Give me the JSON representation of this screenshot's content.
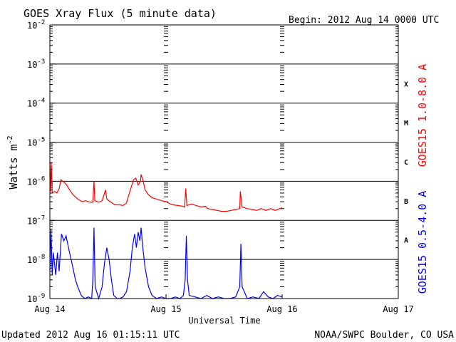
{
  "chart_data": {
    "type": "line",
    "title": "GOES Xray Flux (5 minute data)",
    "begin_label": "Begin:  2012 Aug 14 0000 UTC",
    "ylabel": "Watts m",
    "ylabel_sup": "-2",
    "xlabel": "Universal Time",
    "y_scale": "log",
    "ylim": [
      1e-09,
      0.01
    ],
    "y_ticks": [
      {
        "base": "10",
        "exp": "-2"
      },
      {
        "base": "10",
        "exp": "-3"
      },
      {
        "base": "10",
        "exp": "-4"
      },
      {
        "base": "10",
        "exp": "-5"
      },
      {
        "base": "10",
        "exp": "-6"
      },
      {
        "base": "10",
        "exp": "-7"
      },
      {
        "base": "10",
        "exp": "-8"
      },
      {
        "base": "10",
        "exp": "-9"
      }
    ],
    "x_ticks": [
      "Aug 14",
      "Aug 15",
      "Aug 16",
      "Aug 17"
    ],
    "xlim_days": [
      0,
      3
    ],
    "flare_classes": [
      {
        "label": "X",
        "value": 0.0001
      },
      {
        "label": "M",
        "value": 1e-05
      },
      {
        "label": "C",
        "value": 1e-06
      },
      {
        "label": "B",
        "value": 1e-07
      },
      {
        "label": "A",
        "value": 1e-08
      }
    ],
    "grid": true,
    "series": [
      {
        "name": "GOES15 1.0-8.0 A",
        "color": "#ff0000",
        "points": [
          [
            0.0,
            3.2e-06
          ],
          [
            0.005,
            5.5e-07
          ],
          [
            0.012,
            3e-06
          ],
          [
            0.02,
            5e-07
          ],
          [
            0.04,
            5.5e-07
          ],
          [
            0.06,
            5e-07
          ],
          [
            0.08,
            6.5e-07
          ],
          [
            0.095,
            1.1e-06
          ],
          [
            0.11,
            1e-06
          ],
          [
            0.14,
            8.5e-07
          ],
          [
            0.17,
            6e-07
          ],
          [
            0.2,
            4.5e-07
          ],
          [
            0.24,
            3.5e-07
          ],
          [
            0.28,
            3e-07
          ],
          [
            0.31,
            3.2e-07
          ],
          [
            0.33,
            3e-07
          ],
          [
            0.35,
            2.9e-07
          ],
          [
            0.37,
            2.9e-07
          ],
          [
            0.38,
            1e-06
          ],
          [
            0.388,
            3.2e-07
          ],
          [
            0.42,
            2.9e-07
          ],
          [
            0.45,
            3.2e-07
          ],
          [
            0.48,
            6e-07
          ],
          [
            0.49,
            3.5e-07
          ],
          [
            0.52,
            3e-07
          ],
          [
            0.56,
            2.5e-07
          ],
          [
            0.6,
            2.5e-07
          ],
          [
            0.63,
            2.4e-07
          ],
          [
            0.66,
            2.8e-07
          ],
          [
            0.68,
            4.5e-07
          ],
          [
            0.7,
            7e-07
          ],
          [
            0.72,
            1.1e-06
          ],
          [
            0.74,
            1.2e-06
          ],
          [
            0.76,
            8e-07
          ],
          [
            0.78,
            1e-06
          ],
          [
            0.785,
            1.5e-06
          ],
          [
            0.8,
            1.1e-06
          ],
          [
            0.82,
            6e-07
          ],
          [
            0.85,
            4.5e-07
          ],
          [
            0.88,
            3.8e-07
          ],
          [
            0.92,
            3.5e-07
          ],
          [
            0.96,
            3.2e-07
          ],
          [
            1.0,
            3e-07
          ],
          [
            1.04,
            2.6e-07
          ],
          [
            1.06,
            2.5e-07
          ],
          [
            1.1,
            2.4e-07
          ],
          [
            1.14,
            2.3e-07
          ],
          [
            1.16,
            2.2e-07
          ],
          [
            1.17,
            6.5e-07
          ],
          [
            1.18,
            2.4e-07
          ],
          [
            1.22,
            2.6e-07
          ],
          [
            1.26,
            2.4e-07
          ],
          [
            1.3,
            2.2e-07
          ],
          [
            1.34,
            2.3e-07
          ],
          [
            1.36,
            2e-07
          ],
          [
            1.4,
            1.9e-07
          ],
          [
            1.44,
            1.8e-07
          ],
          [
            1.48,
            1.7e-07
          ],
          [
            1.52,
            1.7e-07
          ],
          [
            1.56,
            1.8e-07
          ],
          [
            1.6,
            1.9e-07
          ],
          [
            1.635,
            2e-07
          ],
          [
            1.64,
            5.5e-07
          ],
          [
            1.655,
            2.2e-07
          ],
          [
            1.7,
            2e-07
          ],
          [
            1.74,
            1.9e-07
          ],
          [
            1.78,
            1.8e-07
          ],
          [
            1.82,
            2e-07
          ],
          [
            1.86,
            1.8e-07
          ],
          [
            1.9,
            2e-07
          ],
          [
            1.94,
            1.8e-07
          ],
          [
            1.98,
            2e-07
          ],
          [
            2.0,
            2.1e-07
          ]
        ]
      },
      {
        "name": "GOES15 0.5-4.0 A",
        "color": "#0000ff",
        "points": [
          [
            0.0,
            5e-09
          ],
          [
            0.01,
            6e-08
          ],
          [
            0.02,
            4e-09
          ],
          [
            0.03,
            1.5e-08
          ],
          [
            0.05,
            4e-09
          ],
          [
            0.065,
            1.5e-08
          ],
          [
            0.08,
            5e-09
          ],
          [
            0.1,
            4.5e-08
          ],
          [
            0.12,
            3e-08
          ],
          [
            0.14,
            4e-08
          ],
          [
            0.16,
            2e-08
          ],
          [
            0.19,
            8e-09
          ],
          [
            0.22,
            3e-09
          ],
          [
            0.24,
            2e-09
          ],
          [
            0.27,
            1.2e-09
          ],
          [
            0.3,
            1e-09
          ],
          [
            0.33,
            1.1e-09
          ],
          [
            0.36,
            1e-09
          ],
          [
            0.37,
            3e-09
          ],
          [
            0.38,
            6.5e-08
          ],
          [
            0.39,
            2e-09
          ],
          [
            0.42,
            1e-09
          ],
          [
            0.45,
            2e-09
          ],
          [
            0.47,
            8e-09
          ],
          [
            0.49,
            2e-08
          ],
          [
            0.51,
            1e-08
          ],
          [
            0.53,
            3e-09
          ],
          [
            0.55,
            1.2e-09
          ],
          [
            0.58,
            1e-09
          ],
          [
            0.6,
            1e-09
          ],
          [
            0.63,
            1.1e-09
          ],
          [
            0.66,
            1.5e-09
          ],
          [
            0.69,
            5e-09
          ],
          [
            0.71,
            2e-08
          ],
          [
            0.73,
            4.5e-08
          ],
          [
            0.745,
            2e-08
          ],
          [
            0.76,
            5e-08
          ],
          [
            0.775,
            3e-08
          ],
          [
            0.785,
            6.5e-08
          ],
          [
            0.8,
            2e-08
          ],
          [
            0.82,
            6e-09
          ],
          [
            0.85,
            2e-09
          ],
          [
            0.88,
            1.2e-09
          ],
          [
            0.92,
            1e-09
          ],
          [
            0.96,
            1.1e-09
          ],
          [
            1.0,
            1e-09
          ],
          [
            1.04,
            1e-09
          ],
          [
            1.08,
            1.1e-09
          ],
          [
            1.12,
            1e-09
          ],
          [
            1.15,
            1.2e-09
          ],
          [
            1.165,
            3e-09
          ],
          [
            1.175,
            4e-08
          ],
          [
            1.185,
            3e-09
          ],
          [
            1.2,
            1.2e-09
          ],
          [
            1.25,
            1.1e-09
          ],
          [
            1.3,
            1e-09
          ],
          [
            1.35,
            1.2e-09
          ],
          [
            1.4,
            1e-09
          ],
          [
            1.45,
            1.1e-09
          ],
          [
            1.5,
            1e-09
          ],
          [
            1.55,
            1e-09
          ],
          [
            1.6,
            1.1e-09
          ],
          [
            1.635,
            2e-09
          ],
          [
            1.645,
            2.5e-08
          ],
          [
            1.655,
            2e-09
          ],
          [
            1.7,
            1e-09
          ],
          [
            1.75,
            1.1e-09
          ],
          [
            1.8,
            1e-09
          ],
          [
            1.84,
            1.5e-09
          ],
          [
            1.88,
            1.1e-09
          ],
          [
            1.92,
            1e-09
          ],
          [
            1.96,
            1.2e-09
          ],
          [
            2.0,
            1.1e-09
          ]
        ]
      }
    ],
    "footer_left": "Updated 2012 Aug 16 01:15:11 UTC",
    "footer_right": "NOAA/SWPC Boulder, CO USA"
  }
}
